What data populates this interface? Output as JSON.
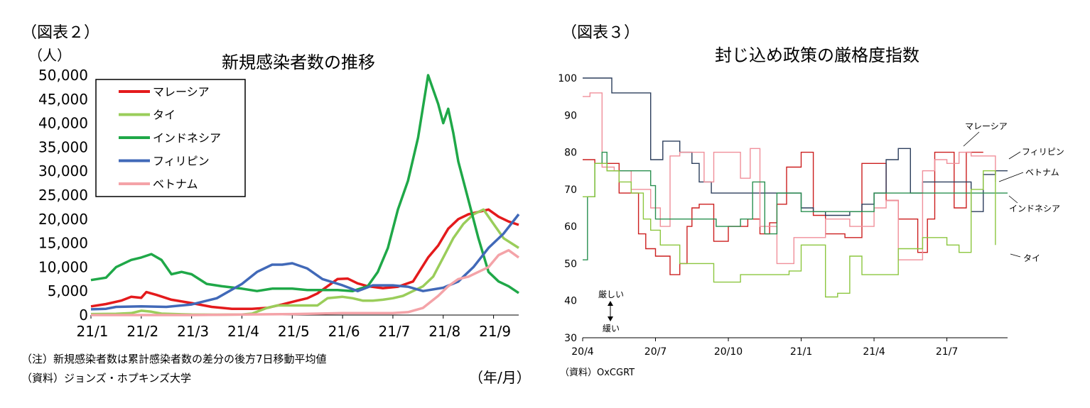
{
  "left": {
    "panel_label": "（図表２）",
    "y_unit": "（人）",
    "x_unit": "（年/月）",
    "note": "（注）新規感染者数は累計感染者数の差分の後方7日移動平均値",
    "source": "（資料）ジョンズ・ホプキンズ大学"
  },
  "right": {
    "panel_label": "（図表３）",
    "source": "（資料）OxCGRT",
    "strict_label": "厳しい",
    "loose_label": "緩い"
  },
  "chart_data": [
    {
      "type": "line",
      "title": "新規感染者数の推移",
      "ylim": [
        0,
        50000
      ],
      "y_ticks": [
        "0",
        "5,000",
        "10,000",
        "15,000",
        "20,000",
        "25,000",
        "30,000",
        "35,000",
        "40,000",
        "45,000",
        "50,000"
      ],
      "x_ticks": [
        "21/1",
        "21/2",
        "21/3",
        "21/4",
        "21/5",
        "21/6",
        "21/7",
        "21/8",
        "21/9"
      ],
      "x_month_range": [
        0,
        8.5
      ],
      "legend": "top-left",
      "series": [
        {
          "name": "マレーシア",
          "color": "#e41a1c",
          "x": [
            0,
            0.3,
            0.6,
            0.8,
            1.0,
            1.1,
            1.3,
            1.6,
            2.0,
            2.4,
            2.8,
            3.2,
            3.5,
            3.8,
            4.1,
            4.3,
            4.5,
            4.7,
            4.9,
            5.1,
            5.3,
            5.5,
            5.8,
            6.1,
            6.4,
            6.7,
            6.9,
            7.1,
            7.3,
            7.5,
            7.7,
            7.9,
            8.1,
            8.3,
            8.5
          ],
          "values": [
            1800,
            2300,
            3000,
            3800,
            3600,
            4800,
            4200,
            3200,
            2500,
            1700,
            1300,
            1300,
            1500,
            2200,
            3000,
            3500,
            4500,
            6000,
            7500,
            7600,
            6600,
            6000,
            5600,
            5900,
            7000,
            12000,
            14500,
            18000,
            20000,
            21000,
            21500,
            22000,
            20500,
            19500,
            18800
          ]
        },
        {
          "name": "タイ",
          "color": "#9acd5a",
          "x": [
            0,
            0.5,
            0.8,
            1.0,
            1.2,
            1.4,
            2.0,
            2.5,
            3.0,
            3.2,
            3.5,
            3.7,
            4.0,
            4.3,
            4.5,
            4.7,
            5.0,
            5.2,
            5.4,
            5.6,
            5.8,
            6.0,
            6.2,
            6.4,
            6.6,
            6.8,
            7.0,
            7.2,
            7.4,
            7.6,
            7.8,
            8.0,
            8.2,
            8.5
          ],
          "values": [
            200,
            250,
            400,
            900,
            700,
            300,
            100,
            80,
            100,
            300,
            1500,
            2000,
            2000,
            2000,
            2000,
            3500,
            3800,
            3500,
            3000,
            3000,
            3200,
            3500,
            4000,
            5000,
            6000,
            8000,
            12000,
            16000,
            19000,
            21000,
            22000,
            19000,
            16000,
            14000
          ]
        },
        {
          "name": "インドネシア",
          "color": "#1fa848",
          "x": [
            0,
            0.3,
            0.5,
            0.8,
            1.0,
            1.2,
            1.4,
            1.6,
            1.8,
            2.0,
            2.3,
            2.6,
            3.0,
            3.3,
            3.6,
            4.0,
            4.3,
            4.6,
            4.9,
            5.2,
            5.5,
            5.7,
            5.9,
            6.1,
            6.3,
            6.5,
            6.7,
            6.9,
            7.0,
            7.1,
            7.2,
            7.3,
            7.5,
            7.7,
            7.9,
            8.1,
            8.3,
            8.5
          ],
          "values": [
            7300,
            7800,
            10000,
            11500,
            12000,
            12700,
            11500,
            8500,
            9000,
            8500,
            6500,
            6000,
            5500,
            5000,
            5500,
            5500,
            5200,
            5200,
            5200,
            5000,
            6000,
            9000,
            14000,
            22000,
            28000,
            37000,
            50000,
            44000,
            40000,
            43000,
            38000,
            32000,
            24000,
            16000,
            9000,
            7000,
            6000,
            4600
          ]
        },
        {
          "name": "フィリピン",
          "color": "#4169b8",
          "x": [
            0,
            0.3,
            0.5,
            1.0,
            1.5,
            2.0,
            2.5,
            3.0,
            3.3,
            3.6,
            3.8,
            4.0,
            4.3,
            4.6,
            5.0,
            5.3,
            5.6,
            6.0,
            6.3,
            6.6,
            7.0,
            7.3,
            7.6,
            7.9,
            8.2,
            8.5
          ],
          "values": [
            1200,
            1300,
            1700,
            1800,
            1700,
            2200,
            3500,
            6500,
            9000,
            10500,
            10500,
            10800,
            9700,
            7500,
            6200,
            5000,
            6200,
            6200,
            5900,
            5000,
            5700,
            7000,
            10000,
            14000,
            17000,
            21000
          ]
        },
        {
          "name": "ベトナム",
          "color": "#f4a3a8",
          "x": [
            0,
            2.0,
            4.0,
            4.5,
            5.0,
            5.5,
            6.0,
            6.3,
            6.6,
            6.9,
            7.1,
            7.3,
            7.5,
            7.7,
            7.9,
            8.1,
            8.3,
            8.5
          ],
          "values": [
            0,
            0,
            200,
            300,
            400,
            400,
            400,
            600,
            1500,
            4000,
            6000,
            7500,
            8000,
            9000,
            10000,
            12500,
            13500,
            12000
          ]
        }
      ]
    },
    {
      "type": "line",
      "title": "封じ込め政策の厳格度指数",
      "ylim": [
        30,
        100
      ],
      "y_ticks": [
        "30",
        "40",
        "50",
        "60",
        "70",
        "80",
        "90",
        "100"
      ],
      "x_ticks": [
        "20/4",
        "20/7",
        "20/10",
        "21/1",
        "21/4",
        "21/7"
      ],
      "x_month_range": [
        0,
        17.5
      ],
      "series": [
        {
          "name": "マレーシア",
          "color": "#cc1f1f",
          "x": [
            0,
            0.5,
            1.5,
            2.3,
            2.6,
            3.0,
            3.6,
            4.0,
            4.3,
            4.5,
            4.8,
            5.0,
            5.4,
            6.0,
            6.8,
            7.3,
            7.7,
            8.0,
            8.4,
            9.0,
            9.5,
            10.0,
            10.8,
            11.5,
            12.0,
            12.5,
            13.0,
            13.8,
            14.2,
            14.5,
            15.0,
            15.3,
            15.8,
            16.5
          ],
          "values": [
            78,
            77,
            69,
            58,
            54,
            52,
            47,
            50,
            60,
            65,
            66,
            66,
            56,
            60,
            62,
            58,
            61,
            66,
            76,
            80,
            63,
            58,
            57,
            77,
            77,
            67,
            62,
            53,
            62,
            80,
            80,
            65,
            80,
            80
          ]
        },
        {
          "name": "フィリピン",
          "color": "#2c3e5c",
          "x": [
            0,
            1.0,
            1.2,
            2.5,
            2.8,
            3.3,
            4.0,
            4.5,
            4.8,
            5.3,
            6.0,
            6.8,
            7.5,
            8.0,
            8.5,
            9.0,
            9.5,
            10.0,
            10.5,
            11.0,
            11.5,
            12.0,
            12.5,
            13.0,
            13.5,
            14.0,
            15.0,
            15.5,
            16.0,
            16.5,
            17.0,
            17.5
          ],
          "values": [
            100,
            100,
            96,
            96,
            78,
            83,
            80,
            77,
            72,
            69,
            69,
            69,
            69,
            69,
            69,
            65,
            64,
            63,
            63,
            64,
            66,
            69,
            78,
            81,
            69,
            72,
            72,
            72,
            64,
            74,
            75,
            75
          ]
        },
        {
          "name": "ベトナム",
          "color": "#f08f9a",
          "x": [
            0,
            0.3,
            0.8,
            1.3,
            2.0,
            2.3,
            2.8,
            3.2,
            3.6,
            4.0,
            4.5,
            5.0,
            5.4,
            5.8,
            6.2,
            6.5,
            6.9,
            7.3,
            7.7,
            8.0,
            8.3,
            8.7,
            9.0,
            9.5,
            10.0,
            10.5,
            11.0,
            11.5,
            12.0,
            12.5,
            13.0,
            13.5,
            14.0,
            14.5,
            15.0,
            15.5,
            16.0,
            16.5,
            17.0
          ],
          "values": [
            95,
            96,
            76,
            75,
            70,
            70,
            65,
            60,
            79,
            80,
            80,
            72,
            80,
            80,
            80,
            73,
            81,
            60,
            60,
            50,
            50,
            57,
            57,
            57,
            62,
            62,
            60,
            60,
            65,
            67,
            51,
            51,
            75,
            78,
            77,
            80,
            79,
            79,
            72
          ]
        },
        {
          "name": "インドネシア",
          "color": "#2a9050",
          "x": [
            0,
            0.2,
            0.5,
            0.8,
            1.0,
            1.5,
            2.0,
            2.8,
            3.0,
            3.5,
            4.0,
            5.0,
            5.5,
            6.0,
            6.5,
            7.0,
            7.5,
            8.0,
            9.0,
            10.0,
            10.5,
            11.0,
            12.0,
            13.0,
            14.0,
            15.0,
            16.0,
            17.5
          ],
          "values": [
            51,
            68,
            77,
            80,
            75,
            75,
            75,
            71,
            62,
            62,
            62,
            62,
            60,
            60,
            62,
            72,
            58,
            69,
            64,
            64,
            64,
            64,
            69,
            69,
            69,
            69,
            69,
            69
          ]
        },
        {
          "name": "タイ",
          "color": "#8cc63f",
          "x": [
            0,
            0.5,
            1.0,
            1.5,
            2.0,
            2.5,
            2.8,
            3.2,
            3.6,
            4.0,
            4.5,
            5.0,
            5.4,
            6.0,
            6.5,
            7.0,
            7.5,
            8.0,
            8.5,
            9.0,
            9.5,
            10.0,
            10.5,
            11.0,
            11.5,
            12.0,
            12.5,
            13.0,
            14.0,
            14.5,
            15.0,
            15.5,
            16.0,
            16.5,
            17.0
          ],
          "values": [
            68,
            77,
            75,
            72,
            69,
            62,
            59,
            55,
            55,
            50,
            50,
            50,
            45,
            45,
            47,
            47,
            47,
            47,
            48,
            55,
            55,
            41,
            42,
            52,
            47,
            47,
            47,
            54,
            57,
            57,
            55,
            53,
            70,
            75,
            55
          ]
        }
      ],
      "label_order": [
        "マレーシア",
        "フィリピン",
        "ベトナム",
        "インドネシア",
        "タイ"
      ]
    }
  ]
}
